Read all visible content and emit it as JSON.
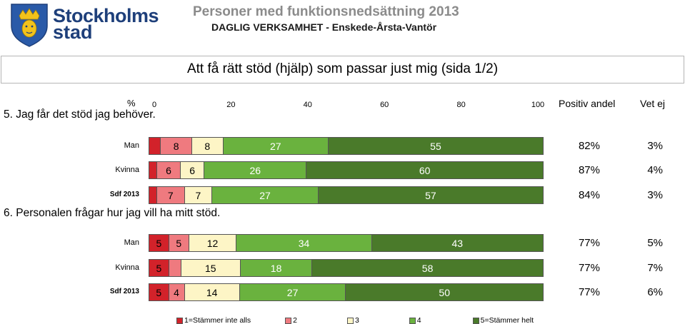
{
  "brand": {
    "name_line1": "Stockholms",
    "name_line2": "stad"
  },
  "report": {
    "title": "Personer med funktionsnedsättning 2013",
    "subtitle": "DAGLIG VERKSAMHET - Enskede-Årsta-Vantör"
  },
  "section_title": "Att få rätt stöd (hjälp) som passar just mig (sida 1/2)",
  "header": {
    "pct": "%",
    "positive": "Positiv andel",
    "unknown": "Vet ej"
  },
  "colors": {
    "c1": "#d2222a",
    "c2": "#ef7a7f",
    "c3": "#fdf5c6",
    "c4": "#6ab23e",
    "c5": "#4a7a2a"
  },
  "chart_data": {
    "type": "bar",
    "stacked": true,
    "orientation": "horizontal",
    "xlim": [
      0,
      100
    ],
    "xticks": [
      "0",
      "20",
      "40",
      "60",
      "80",
      "100"
    ],
    "legend": [
      "1=Stämmer inte alls",
      "2",
      "3",
      "4",
      "5=Stämmer helt"
    ],
    "legend_position": "bottom",
    "questions": [
      {
        "text": "5. Jag får det stöd jag behöver.",
        "rows": [
          {
            "label": "Man",
            "values": [
              3,
              8,
              8,
              27,
              55
            ],
            "labels": [
              "",
              "8",
              "8",
              "27",
              "55"
            ],
            "positive": "82%",
            "unknown": "3%"
          },
          {
            "label": "Kvinna",
            "values": [
              2,
              6,
              6,
              26,
              60
            ],
            "labels": [
              "",
              "6",
              "6",
              "26",
              "60"
            ],
            "positive": "87%",
            "unknown": "4%"
          },
          {
            "label": "Sdf 2013",
            "values": [
              2,
              7,
              7,
              27,
              57
            ],
            "labels": [
              "",
              "7",
              "7",
              "27",
              "57"
            ],
            "positive": "84%",
            "unknown": "3%"
          }
        ]
      },
      {
        "text": "6. Personalen frågar hur jag vill ha mitt stöd.",
        "rows": [
          {
            "label": "Man",
            "values": [
              5,
              5,
              12,
              34,
              43
            ],
            "labels": [
              "5",
              "5",
              "12",
              "34",
              "43"
            ],
            "positive": "77%",
            "unknown": "5%"
          },
          {
            "label": "Kvinna",
            "values": [
              5,
              3,
              15,
              18,
              58
            ],
            "labels": [
              "5",
              "",
              "15",
              "18",
              "58"
            ],
            "positive": "77%",
            "unknown": "7%"
          },
          {
            "label": "Sdf 2013",
            "values": [
              5,
              4,
              14,
              27,
              50
            ],
            "labels": [
              "5",
              "4",
              "14",
              "27",
              "50"
            ],
            "positive": "77%",
            "unknown": "6%"
          }
        ]
      }
    ]
  }
}
